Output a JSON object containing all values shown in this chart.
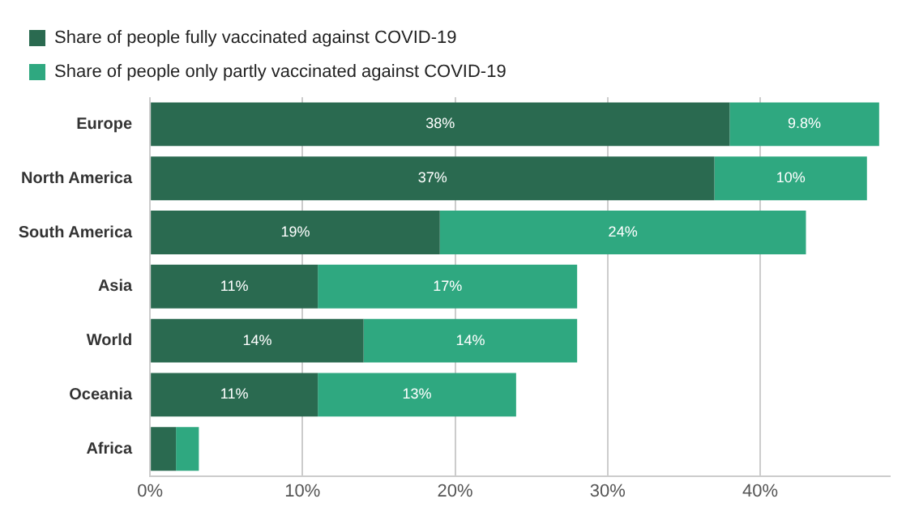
{
  "chart_data": {
    "type": "bar",
    "orientation": "horizontal",
    "stacked": true,
    "categories": [
      "Europe",
      "North America",
      "South America",
      "Asia",
      "World",
      "Oceania",
      "Africa"
    ],
    "series": [
      {
        "name": "Share of people fully vaccinated against COVID-19",
        "color": "#2a6a50",
        "values": [
          38,
          37,
          19,
          11,
          14,
          11,
          1.7
        ],
        "value_labels": [
          "38%",
          "37%",
          "19%",
          "11%",
          "14%",
          "11%",
          null
        ]
      },
      {
        "name": "Share of people only partly vaccinated against COVID-19",
        "color": "#2fa880",
        "values": [
          9.8,
          10,
          24,
          17,
          14,
          13,
          1.5
        ],
        "value_labels": [
          "9.8%",
          "10%",
          "24%",
          "17%",
          "14%",
          "13%",
          null
        ]
      }
    ],
    "xlim": [
      0,
      48.5
    ],
    "xticks": [
      {
        "value": 0,
        "label": "0%"
      },
      {
        "value": 10,
        "label": "10%"
      },
      {
        "value": 20,
        "label": "20%"
      },
      {
        "value": 30,
        "label": "30%"
      },
      {
        "value": 40,
        "label": "40%"
      }
    ],
    "grid": "x",
    "legend": "top left"
  }
}
